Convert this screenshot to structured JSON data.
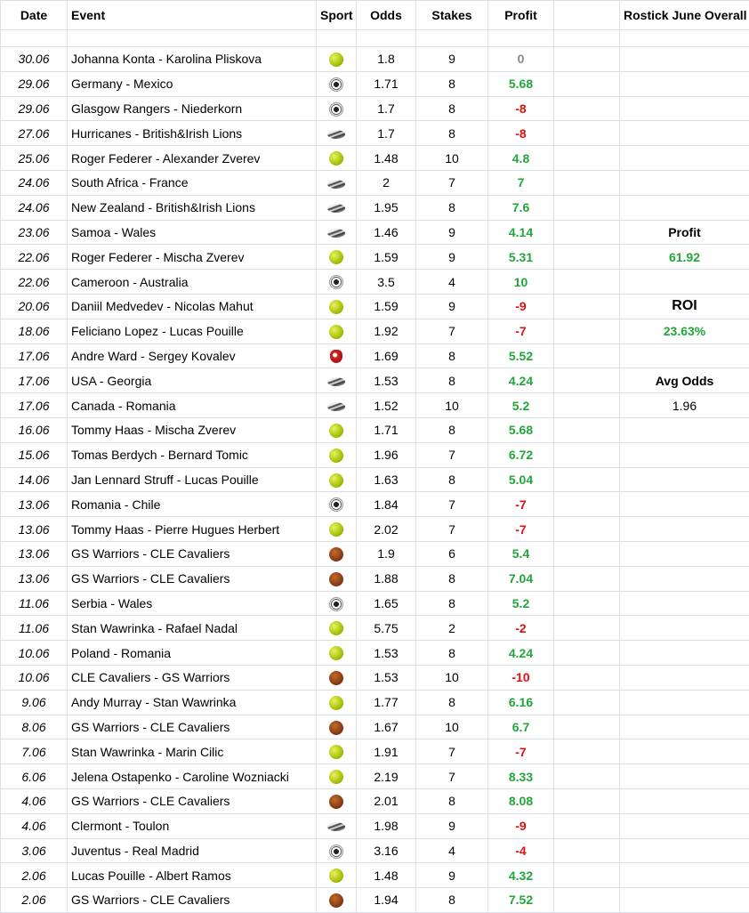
{
  "headers": {
    "date": "Date",
    "event": "Event",
    "sport": "Sport",
    "odds": "Odds",
    "stakes": "Stakes",
    "profit": "Profit",
    "summary": "Rostick June Overall"
  },
  "summary": {
    "profit_label": "Profit",
    "profit_value": "61.92",
    "roi_label": "ROI",
    "roi_value": "23.63%",
    "avg_odds_label": "Avg Odds",
    "avg_odds_value": "1.96"
  },
  "colors": {
    "positive": "#22a63a",
    "negative": "#e01010",
    "zero": "#888888",
    "grid": "#d9dee8"
  },
  "rows": [
    {
      "date": "30.06",
      "event": "Johanna Konta - Karolina Pliskova",
      "sport": "tennis",
      "odds": "1.8",
      "stakes": "9",
      "profit": "0"
    },
    {
      "date": "29.06",
      "event": "Germany - Mexico",
      "sport": "soccer",
      "odds": "1.71",
      "stakes": "8",
      "profit": "5.68"
    },
    {
      "date": "29.06",
      "event": "Glasgow Rangers - Niederkorn",
      "sport": "soccer",
      "odds": "1.7",
      "stakes": "8",
      "profit": "-8"
    },
    {
      "date": "27.06",
      "event": "Hurricanes - British&Irish Lions",
      "sport": "rugby",
      "odds": "1.7",
      "stakes": "8",
      "profit": "-8"
    },
    {
      "date": "25.06",
      "event": "Roger Federer - Alexander Zverev",
      "sport": "tennis",
      "odds": "1.48",
      "stakes": "10",
      "profit": "4.8"
    },
    {
      "date": "24.06",
      "event": "South Africa - France",
      "sport": "rugby",
      "odds": "2",
      "stakes": "7",
      "profit": "7"
    },
    {
      "date": "24.06",
      "event": "New Zealand - British&Irish Lions",
      "sport": "rugby",
      "odds": "1.95",
      "stakes": "8",
      "profit": "7.6"
    },
    {
      "date": "23.06",
      "event": "Samoa - Wales",
      "sport": "rugby",
      "odds": "1.46",
      "stakes": "9",
      "profit": "4.14"
    },
    {
      "date": "22.06",
      "event": "Roger Federer - Mischa Zverev",
      "sport": "tennis",
      "odds": "1.59",
      "stakes": "9",
      "profit": "5.31"
    },
    {
      "date": "22.06",
      "event": "Cameroon - Australia",
      "sport": "soccer",
      "odds": "3.5",
      "stakes": "4",
      "profit": "10"
    },
    {
      "date": "20.06",
      "event": "Daniil Medvedev - Nicolas Mahut",
      "sport": "tennis",
      "odds": "1.59",
      "stakes": "9",
      "profit": "-9"
    },
    {
      "date": "18.06",
      "event": "Feliciano Lopez - Lucas Pouille",
      "sport": "tennis",
      "odds": "1.92",
      "stakes": "7",
      "profit": "-7"
    },
    {
      "date": "17.06",
      "event": "Andre Ward - Sergey Kovalev",
      "sport": "boxing",
      "odds": "1.69",
      "stakes": "8",
      "profit": "5.52"
    },
    {
      "date": "17.06",
      "event": "USA - Georgia",
      "sport": "rugby",
      "odds": "1.53",
      "stakes": "8",
      "profit": "4.24"
    },
    {
      "date": "17.06",
      "event": "Canada - Romania",
      "sport": "rugby",
      "odds": "1.52",
      "stakes": "10",
      "profit": "5.2"
    },
    {
      "date": "16.06",
      "event": "Tommy Haas - Mischa Zverev",
      "sport": "tennis",
      "odds": "1.71",
      "stakes": "8",
      "profit": "5.68"
    },
    {
      "date": "15.06",
      "event": "Tomas Berdych - Bernard Tomic",
      "sport": "tennis",
      "odds": "1.96",
      "stakes": "7",
      "profit": "6.72"
    },
    {
      "date": "14.06",
      "event": "Jan Lennard Struff - Lucas Pouille",
      "sport": "tennis",
      "odds": "1.63",
      "stakes": "8",
      "profit": "5.04"
    },
    {
      "date": "13.06",
      "event": "Romania - Chile",
      "sport": "soccer",
      "odds": "1.84",
      "stakes": "7",
      "profit": "-7"
    },
    {
      "date": "13.06",
      "event": "Tommy Haas - Pierre Hugues Herbert",
      "sport": "tennis",
      "odds": "2.02",
      "stakes": "7",
      "profit": "-7"
    },
    {
      "date": "13.06",
      "event": "GS Warriors - CLE Cavaliers",
      "sport": "basketball",
      "odds": "1.9",
      "stakes": "6",
      "profit": "5.4"
    },
    {
      "date": "13.06",
      "event": "GS Warriors - CLE Cavaliers",
      "sport": "basketball",
      "odds": "1.88",
      "stakes": "8",
      "profit": "7.04"
    },
    {
      "date": "11.06",
      "event": "Serbia - Wales",
      "sport": "soccer",
      "odds": "1.65",
      "stakes": "8",
      "profit": "5.2"
    },
    {
      "date": "11.06",
      "event": "Stan Wawrinka - Rafael Nadal",
      "sport": "tennis",
      "odds": "5.75",
      "stakes": "2",
      "profit": "-2"
    },
    {
      "date": "10.06",
      "event": "Poland - Romania",
      "sport": "tennis",
      "odds": "1.53",
      "stakes": "8",
      "profit": "4.24"
    },
    {
      "date": "10.06",
      "event": "CLE Cavaliers - GS Warriors",
      "sport": "basketball",
      "odds": "1.53",
      "stakes": "10",
      "profit": "-10"
    },
    {
      "date": "9.06",
      "event": "Andy Murray - Stan Wawrinka",
      "sport": "tennis",
      "odds": "1.77",
      "stakes": "8",
      "profit": "6.16"
    },
    {
      "date": "8.06",
      "event": "GS Warriors - CLE Cavaliers",
      "sport": "basketball",
      "odds": "1.67",
      "stakes": "10",
      "profit": "6.7"
    },
    {
      "date": "7.06",
      "event": "Stan Wawrinka - Marin Cilic",
      "sport": "tennis",
      "odds": "1.91",
      "stakes": "7",
      "profit": "-7"
    },
    {
      "date": "6.06",
      "event": "Jelena Ostapenko - Caroline Wozniacki",
      "sport": "tennis",
      "odds": "2.19",
      "stakes": "7",
      "profit": "8.33"
    },
    {
      "date": "4.06",
      "event": "GS Warriors - CLE Cavaliers",
      "sport": "basketball",
      "odds": "2.01",
      "stakes": "8",
      "profit": "8.08"
    },
    {
      "date": "4.06",
      "event": "Clermont - Toulon",
      "sport": "rugby",
      "odds": "1.98",
      "stakes": "9",
      "profit": "-9"
    },
    {
      "date": "3.06",
      "event": "Juventus - Real Madrid",
      "sport": "soccer",
      "odds": "3.16",
      "stakes": "4",
      "profit": "-4"
    },
    {
      "date": "2.06",
      "event": "Lucas Pouille - Albert Ramos",
      "sport": "tennis",
      "odds": "1.48",
      "stakes": "9",
      "profit": "4.32"
    },
    {
      "date": "2.06",
      "event": "GS Warriors - CLE Cavaliers",
      "sport": "basketball",
      "odds": "1.94",
      "stakes": "8",
      "profit": "7.52"
    }
  ]
}
